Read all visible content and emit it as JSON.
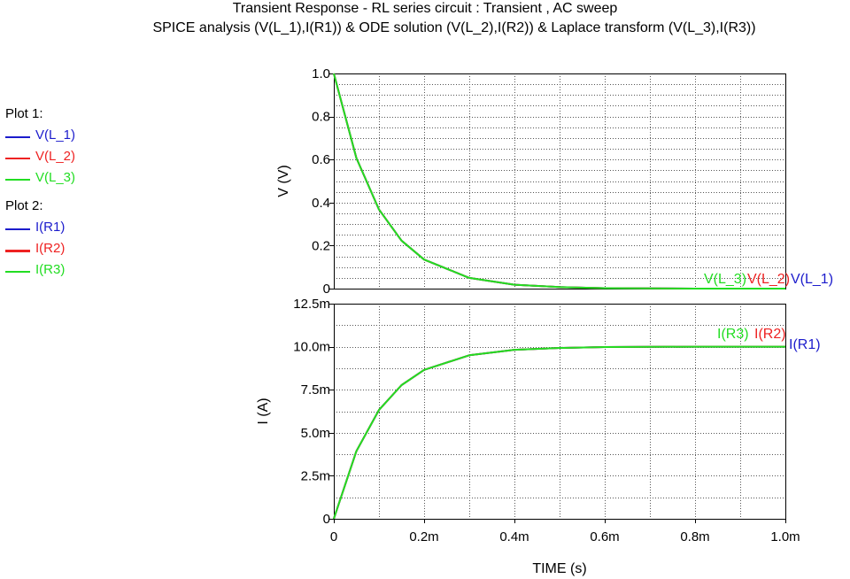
{
  "title": "Transient Response  -  RL series circuit   : Transient , AC sweep",
  "subtitle": "SPICE analysis (V(L_1),I(R1)) & ODE solution (V(L_2),I(R2)) & Laplace transform (V(L_3),I(R3))",
  "legend": {
    "plot1_label": "Plot 1:",
    "plot2_label": "Plot 2:",
    "plot1_items": [
      {
        "label": "V(L_1)",
        "color": "#1c1ccc"
      },
      {
        "label": "V(L_2)",
        "color": "#ee2222"
      },
      {
        "label": "V(L_3)",
        "color": "#22dd22"
      }
    ],
    "plot2_items": [
      {
        "label": "I(R1)",
        "color": "#1c1ccc"
      },
      {
        "label": "I(R2)",
        "color": "#ee2222"
      },
      {
        "label": "I(R3)",
        "color": "#22dd22"
      }
    ]
  },
  "chart_data": [
    {
      "type": "line",
      "ylabel": "V  (V)",
      "ylim": [
        0,
        1.0
      ],
      "xlim": [
        0,
        0.001
      ],
      "grid": true,
      "yticks": [
        {
          "value": 0,
          "label": "0"
        },
        {
          "value": 0.2,
          "label": "0.2"
        },
        {
          "value": 0.4,
          "label": "0.4"
        },
        {
          "value": 0.6,
          "label": "0.6"
        },
        {
          "value": 0.8,
          "label": "0.8"
        },
        {
          "value": 1.0,
          "label": "1.0"
        }
      ],
      "x": [
        0,
        5e-05,
        0.0001,
        0.00015,
        0.0002,
        0.0003,
        0.0004,
        0.0005,
        0.0006,
        0.0008,
        0.001
      ],
      "series": [
        {
          "name": "V(L_1)",
          "color": "#1c1ccc",
          "values": [
            1.0,
            0.607,
            0.368,
            0.223,
            0.135,
            0.05,
            0.018,
            0.007,
            0.002,
            0.0,
            0.0
          ]
        },
        {
          "name": "V(L_2)",
          "color": "#ee2222",
          "values": [
            1.0,
            0.607,
            0.368,
            0.223,
            0.135,
            0.05,
            0.018,
            0.007,
            0.002,
            0.0,
            0.0
          ]
        },
        {
          "name": "V(L_3)",
          "color": "#22dd22",
          "values": [
            1.0,
            0.607,
            0.368,
            0.223,
            0.135,
            0.05,
            0.018,
            0.007,
            0.002,
            0.0,
            0.0
          ]
        }
      ],
      "end_labels": [
        "V(L_3)",
        "V(L_2)",
        "V(L_1)"
      ]
    },
    {
      "type": "line",
      "ylabel": "I  (A)",
      "xlabel": "TIME  (s)",
      "ylim": [
        0,
        0.0125
      ],
      "xlim": [
        0,
        0.001
      ],
      "grid": true,
      "yticks": [
        {
          "value": 0,
          "label": "0"
        },
        {
          "value": 0.0025,
          "label": "2.5m"
        },
        {
          "value": 0.005,
          "label": "5.0m"
        },
        {
          "value": 0.0075,
          "label": "7.5m"
        },
        {
          "value": 0.01,
          "label": "10.0m"
        },
        {
          "value": 0.0125,
          "label": "12.5m"
        }
      ],
      "xticks": [
        {
          "value": 0,
          "label": "0"
        },
        {
          "value": 0.0002,
          "label": "0.2m"
        },
        {
          "value": 0.0004,
          "label": "0.4m"
        },
        {
          "value": 0.0006,
          "label": "0.6m"
        },
        {
          "value": 0.0008,
          "label": "0.8m"
        },
        {
          "value": 0.001,
          "label": "1.0m"
        }
      ],
      "x": [
        0,
        5e-05,
        0.0001,
        0.00015,
        0.0002,
        0.0003,
        0.0004,
        0.0005,
        0.0006,
        0.0008,
        0.001
      ],
      "series": [
        {
          "name": "I(R1)",
          "color": "#1c1ccc",
          "values": [
            0.0,
            0.00393,
            0.00632,
            0.00777,
            0.00865,
            0.0095,
            0.00982,
            0.00993,
            0.00998,
            0.01,
            0.01
          ]
        },
        {
          "name": "I(R2)",
          "color": "#ee2222",
          "values": [
            0.0,
            0.00393,
            0.00632,
            0.00777,
            0.00865,
            0.0095,
            0.00982,
            0.00993,
            0.00998,
            0.01,
            0.01
          ]
        },
        {
          "name": "I(R3)",
          "color": "#22dd22",
          "values": [
            0.0,
            0.00393,
            0.00632,
            0.00777,
            0.00865,
            0.0095,
            0.00982,
            0.00993,
            0.00998,
            0.01,
            0.01
          ]
        }
      ],
      "end_labels": [
        "I(R3)",
        "I(R2)",
        "I(R1)"
      ]
    }
  ]
}
